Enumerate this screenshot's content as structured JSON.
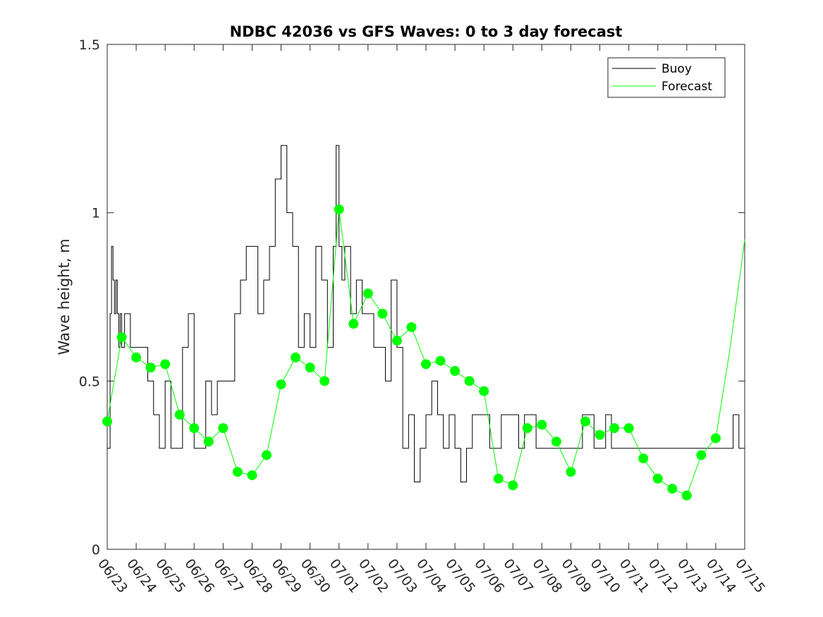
{
  "chart_data": {
    "type": "line",
    "title": "NDBC 42036 vs GFS Waves: 0 to 3 day forecast",
    "xlabel": "",
    "ylabel": "Wave height, m",
    "ylim": [
      0,
      1.5
    ],
    "xlim": [
      "06/23",
      "07/15"
    ],
    "x_tick_labels": [
      "06/23",
      "06/24",
      "06/25",
      "06/26",
      "06/27",
      "06/28",
      "06/29",
      "06/30",
      "07/01",
      "07/02",
      "07/03",
      "07/04",
      "07/05",
      "07/06",
      "07/07",
      "07/08",
      "07/09",
      "07/10",
      "07/11",
      "07/12",
      "07/13",
      "07/14",
      "07/15"
    ],
    "y_ticks": [
      0,
      0.5,
      1,
      1.5
    ],
    "y_tick_labels": [
      "0",
      "0.5",
      "1",
      "1.5"
    ],
    "grid": false,
    "legend": {
      "position": "top-right",
      "entries": [
        "Buoy",
        "Forecast"
      ]
    },
    "colors": {
      "buoy": "#000000",
      "forecast": "#00ff00"
    },
    "series": [
      {
        "name": "Buoy",
        "x": [
          0,
          0.05,
          0.1,
          0.15,
          0.2,
          0.25,
          0.3,
          0.35,
          0.4,
          0.45,
          0.5,
          0.6,
          0.7,
          0.8,
          1.0,
          1.2,
          1.4,
          1.6,
          1.8,
          2.0,
          2.2,
          2.4,
          2.6,
          2.8,
          3.0,
          3.2,
          3.4,
          3.6,
          3.8,
          4.0,
          4.2,
          4.4,
          4.6,
          4.8,
          5.0,
          5.2,
          5.4,
          5.6,
          5.8,
          6.0,
          6.2,
          6.4,
          6.6,
          6.8,
          7.0,
          7.2,
          7.4,
          7.6,
          7.8,
          7.9,
          8.0,
          8.1,
          8.2,
          8.4,
          8.6,
          8.8,
          9.0,
          9.2,
          9.4,
          9.6,
          9.8,
          10.0,
          10.2,
          10.4,
          10.6,
          10.8,
          11.0,
          11.2,
          11.4,
          11.6,
          11.8,
          12.0,
          12.2,
          12.4,
          12.6,
          12.8,
          13.0,
          13.2,
          13.4,
          13.6,
          13.8,
          14.0,
          14.2,
          14.4,
          14.6,
          14.8,
          15.0,
          15.2,
          15.4,
          15.6,
          15.8,
          16.0,
          16.2,
          16.4,
          16.6,
          16.8,
          17.0,
          17.2,
          17.4,
          17.6,
          17.8,
          18.0,
          18.2,
          18.4,
          18.6,
          18.8,
          19.0,
          19.2,
          19.4,
          19.6,
          19.8,
          20.0,
          20.2,
          20.4,
          20.6,
          20.8,
          21.0,
          21.2,
          21.4,
          21.6,
          21.8,
          22.0
        ],
        "values": [
          0.3,
          0.3,
          0.7,
          0.9,
          0.8,
          0.7,
          0.8,
          0.7,
          0.6,
          0.7,
          0.6,
          0.7,
          0.7,
          0.6,
          0.6,
          0.6,
          0.5,
          0.4,
          0.3,
          0.5,
          0.3,
          0.3,
          0.6,
          0.7,
          0.3,
          0.3,
          0.5,
          0.4,
          0.5,
          0.5,
          0.5,
          0.7,
          0.8,
          0.9,
          0.9,
          0.7,
          0.8,
          0.9,
          1.1,
          1.2,
          1.0,
          0.9,
          0.6,
          0.7,
          0.6,
          0.9,
          0.8,
          0.6,
          0.9,
          1.2,
          0.9,
          0.8,
          0.9,
          0.7,
          0.8,
          0.7,
          0.7,
          0.6,
          0.6,
          0.5,
          0.8,
          0.6,
          0.3,
          0.4,
          0.2,
          0.3,
          0.4,
          0.5,
          0.4,
          0.3,
          0.4,
          0.3,
          0.2,
          0.3,
          0.4,
          0.4,
          0.4,
          0.3,
          0.3,
          0.4,
          0.4,
          0.4,
          0.3,
          0.4,
          0.4,
          0.3,
          0.3,
          0.3,
          0.3,
          0.3,
          0.3,
          0.3,
          0.3,
          0.4,
          0.4,
          0.3,
          0.3,
          0.4,
          0.3,
          0.3,
          0.3,
          0.3,
          0.3,
          0.3,
          0.3,
          0.3,
          0.3,
          0.3,
          0.3,
          0.3,
          0.3,
          0.3,
          0.3,
          0.3,
          0.3,
          0.3,
          0.3,
          0.3,
          0.3,
          0.4,
          0.3,
          0.3
        ]
      },
      {
        "name": "Forecast",
        "x": [
          0,
          0.5,
          1.0,
          1.5,
          2.0,
          2.5,
          3.0,
          3.5,
          4.0,
          4.5,
          5.0,
          5.5,
          6.0,
          6.5,
          7.0,
          7.5,
          8.0,
          8.5,
          9.0,
          9.5,
          10.0,
          10.5,
          11.0,
          11.5,
          12.0,
          12.5,
          13.0,
          13.5,
          14.0,
          14.5,
          15.0,
          15.5,
          16.0,
          16.5,
          17.0,
          17.5,
          18.0,
          18.5,
          19.0,
          19.5,
          20.0,
          20.5,
          21.0,
          21.5,
          22.0
        ],
        "values": [
          0.38,
          0.63,
          0.57,
          0.54,
          0.55,
          0.4,
          0.36,
          0.32,
          0.36,
          0.23,
          0.22,
          0.28,
          0.49,
          0.57,
          0.54,
          0.5,
          1.01,
          0.67,
          0.76,
          0.7,
          0.62,
          0.66,
          0.55,
          0.56,
          0.53,
          0.5,
          0.47,
          0.21,
          0.19,
          0.36,
          0.37,
          0.32,
          0.23,
          0.38,
          0.34,
          0.36,
          0.36,
          0.27,
          0.21,
          0.18,
          0.16,
          0.28,
          0.33,
          0.6,
          0.92
        ]
      }
    ],
    "markers": {
      "name": "Forecast analysis points",
      "x": [
        0,
        0.5,
        1.0,
        1.5,
        2.0,
        2.5,
        3.0,
        3.5,
        4.0,
        4.5,
        5.0,
        5.5,
        6.0,
        6.5,
        7.0,
        7.5,
        8.0,
        8.5,
        9.0,
        9.5,
        10.0,
        10.5,
        11.0,
        11.5,
        12.0,
        12.5,
        13.0,
        13.5,
        14.0,
        14.5,
        15.0,
        15.5,
        16.0,
        16.5,
        17.0,
        17.5,
        18.0,
        18.5,
        19.0,
        19.5,
        20.0,
        20.5,
        21.0
      ],
      "values": [
        0.38,
        0.63,
        0.57,
        0.54,
        0.55,
        0.4,
        0.36,
        0.32,
        0.36,
        0.23,
        0.22,
        0.28,
        0.49,
        0.57,
        0.54,
        0.5,
        1.01,
        0.67,
        0.76,
        0.7,
        0.62,
        0.66,
        0.55,
        0.56,
        0.53,
        0.5,
        0.47,
        0.21,
        0.19,
        0.36,
        0.37,
        0.32,
        0.23,
        0.38,
        0.34,
        0.36,
        0.36,
        0.27,
        0.21,
        0.18,
        0.16,
        0.28,
        0.33
      ]
    }
  }
}
